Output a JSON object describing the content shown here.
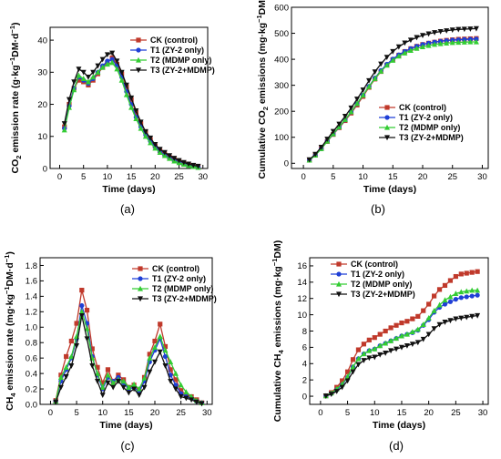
{
  "colors": {
    "CK": "#c0392b",
    "T1": "#1f3fd6",
    "T2": "#33cc33",
    "T3": "#111111"
  },
  "chart_data": [
    {
      "id": "a",
      "type": "line",
      "caption": "(a)",
      "xlabel": "Time (days)",
      "ylabel_parts": [
        "CO",
        "2",
        " emission rate (g·kg",
        "−1",
        "DM·d",
        "−1",
        ")"
      ],
      "xlim": [
        -2,
        31
      ],
      "ylim": [
        0,
        44
      ],
      "xticks": [
        "0",
        "5",
        "10",
        "15",
        "20",
        "25",
        "30"
      ],
      "yticks": [
        "0",
        "10",
        "20",
        "30",
        "40"
      ],
      "legend_position": "top-right",
      "legend": [
        "CK (control)",
        "T1  (ZY-2 only)",
        "T2  (MDMP only)",
        "T3  (ZY-2+MDMP)"
      ],
      "x": [
        1,
        2,
        3,
        4,
        5,
        6,
        7,
        8,
        9,
        10,
        11,
        12,
        13,
        14,
        15,
        16,
        17,
        18,
        19,
        20,
        21,
        22,
        23,
        24,
        25,
        26,
        27,
        28,
        29
      ],
      "series": [
        {
          "key": "CK",
          "marker": "square",
          "values": [
            13,
            20,
            25,
            27.5,
            27,
            26,
            27.5,
            29.5,
            31.5,
            33,
            34.5,
            32.5,
            29.5,
            25.5,
            21.5,
            17.5,
            14,
            11.5,
            9,
            7,
            5.5,
            4.5,
            3.5,
            2.8,
            2.2,
            1.6,
            1.2,
            0.9,
            0.6
          ]
        },
        {
          "key": "T1",
          "marker": "circle",
          "values": [
            12.5,
            19.5,
            25,
            28.5,
            27.5,
            26.5,
            28,
            30,
            32,
            33.5,
            34,
            32,
            28.5,
            24,
            20,
            16,
            13,
            10.5,
            8.5,
            6.8,
            5.3,
            4.2,
            3.3,
            2.5,
            1.9,
            1.4,
            1,
            0.7,
            0.4
          ]
        },
        {
          "key": "T2",
          "marker": "triangle-up",
          "values": [
            12,
            19,
            24.5,
            29,
            28,
            27,
            28.5,
            30,
            31.5,
            32.5,
            33,
            31,
            27.5,
            23,
            19,
            15.5,
            12.5,
            10,
            8,
            6.3,
            5,
            4,
            3.1,
            2.3,
            1.8,
            1.3,
            0.9,
            0.6,
            0.3
          ]
        },
        {
          "key": "T3",
          "marker": "triangle-down",
          "values": [
            14,
            21.5,
            27,
            31,
            30,
            28.5,
            30,
            32,
            34,
            35.5,
            36,
            33.5,
            30,
            26,
            22,
            18,
            14.5,
            11.5,
            9.5,
            7.5,
            6,
            5,
            4,
            3.2,
            2.5,
            1.9,
            1.4,
            1,
            0.7
          ]
        }
      ]
    },
    {
      "id": "b",
      "type": "line",
      "caption": "(b)",
      "xlabel": "Time (days)",
      "ylabel_parts": [
        "Cumulative CO",
        "2",
        " emissions (mg·kg",
        "−1",
        "DM)"
      ],
      "xlim": [
        -2,
        31
      ],
      "ylim": [
        -20,
        600
      ],
      "xticks": [
        "0",
        "5",
        "10",
        "15",
        "20",
        "25",
        "30"
      ],
      "yticks": [
        "0",
        "100",
        "200",
        "300",
        "400",
        "500",
        "600"
      ],
      "legend_position": "bottom-right",
      "legend": [
        "CK (control)",
        "T1  (ZY-2 only)",
        "T2  (MDMP only)",
        "T3  (ZY-2+MDMP)"
      ],
      "x": [
        1,
        2,
        3,
        4,
        5,
        6,
        7,
        8,
        9,
        10,
        11,
        12,
        13,
        14,
        15,
        16,
        17,
        18,
        19,
        20,
        21,
        22,
        23,
        24,
        25,
        26,
        27,
        28,
        29
      ],
      "series": [
        {
          "key": "CK",
          "marker": "square",
          "values": [
            13,
            32,
            57,
            84,
            111,
            137,
            164,
            193,
            224,
            257,
            292,
            324,
            353,
            378,
            399,
            416,
            430,
            441,
            450,
            457,
            462,
            466,
            470,
            473,
            475,
            477,
            478,
            479,
            480
          ]
        },
        {
          "key": "T1",
          "marker": "circle",
          "values": [
            12,
            31,
            56,
            85,
            112,
            139,
            167,
            197,
            229,
            262,
            296,
            328,
            357,
            381,
            401,
            417,
            430,
            441,
            450,
            457,
            462,
            466,
            469,
            472,
            474,
            475,
            476,
            477,
            478
          ]
        },
        {
          "key": "T2",
          "marker": "triangle-up",
          "values": [
            12,
            31,
            56,
            85,
            113,
            140,
            168,
            198,
            230,
            262,
            295,
            326,
            354,
            377,
            396,
            412,
            424,
            434,
            442,
            448,
            453,
            457,
            460,
            462,
            464,
            465,
            466,
            467,
            467
          ]
        },
        {
          "key": "T3",
          "marker": "triangle-down",
          "values": [
            14,
            35,
            62,
            93,
            123,
            151,
            181,
            213,
            247,
            282,
            318,
            352,
            382,
            408,
            430,
            448,
            463,
            474,
            484,
            492,
            498,
            503,
            507,
            510,
            513,
            515,
            516,
            517,
            518
          ]
        }
      ]
    },
    {
      "id": "c",
      "type": "line",
      "caption": "(c)",
      "xlabel": "Time (days)",
      "ylabel_parts": [
        "CH",
        "4",
        " emission rate (mg·kg",
        "−1",
        "DM·d",
        "−1",
        ")"
      ],
      "xlim": [
        -2,
        31
      ],
      "ylim": [
        0,
        1.9
      ],
      "xticks": [
        "0",
        "5",
        "10",
        "15",
        "20",
        "25",
        "30"
      ],
      "yticks": [
        "0.0",
        "0.2",
        "0.4",
        "0.6",
        "0.8",
        "1.0",
        "1.2",
        "1.4",
        "1.6",
        "1.8"
      ],
      "legend_position": "top-right",
      "legend": [
        "CK (control)",
        "T1  (ZY-2 only)",
        "T2  (MDMP only)",
        "T3  (ZY-2+MDMP)"
      ],
      "x": [
        1,
        2,
        3,
        4,
        5,
        6,
        7,
        8,
        9,
        10,
        11,
        12,
        13,
        14,
        15,
        16,
        17,
        18,
        19,
        20,
        21,
        22,
        23,
        24,
        25,
        26,
        27,
        28,
        29
      ],
      "series": [
        {
          "key": "CK",
          "marker": "square",
          "values": [
            0.05,
            0.38,
            0.62,
            0.82,
            1.05,
            1.48,
            1.22,
            0.72,
            0.48,
            0.28,
            0.45,
            0.3,
            0.38,
            0.32,
            0.22,
            0.25,
            0.18,
            0.35,
            0.65,
            0.82,
            1.04,
            0.75,
            0.45,
            0.32,
            0.18,
            0.12,
            0.1,
            0.06,
            0.02
          ]
        },
        {
          "key": "T1",
          "marker": "circle",
          "values": [
            0.04,
            0.3,
            0.45,
            0.6,
            0.85,
            1.28,
            1.05,
            0.62,
            0.38,
            0.2,
            0.35,
            0.3,
            0.35,
            0.28,
            0.2,
            0.22,
            0.16,
            0.3,
            0.55,
            0.7,
            0.85,
            0.62,
            0.38,
            0.25,
            0.14,
            0.1,
            0.08,
            0.04,
            0.02
          ]
        },
        {
          "key": "T2",
          "marker": "triangle-up",
          "values": [
            0.04,
            0.35,
            0.48,
            0.62,
            0.88,
            1.2,
            0.98,
            0.6,
            0.4,
            0.22,
            0.38,
            0.28,
            0.32,
            0.3,
            0.22,
            0.26,
            0.2,
            0.34,
            0.6,
            0.74,
            0.88,
            0.7,
            0.55,
            0.4,
            0.25,
            0.16,
            0.1,
            0.05,
            0.02
          ]
        },
        {
          "key": "T3",
          "marker": "triangle-down",
          "values": [
            0.03,
            0.22,
            0.36,
            0.5,
            0.76,
            1.15,
            0.85,
            0.5,
            0.3,
            0.12,
            0.28,
            0.22,
            0.3,
            0.22,
            0.15,
            0.2,
            0.12,
            0.22,
            0.42,
            0.55,
            0.68,
            0.5,
            0.3,
            0.2,
            0.1,
            0.08,
            0.06,
            0.03,
            0.01
          ]
        }
      ]
    },
    {
      "id": "d",
      "type": "line",
      "caption": "(d)",
      "xlabel": "Time (days)",
      "ylabel_parts": [
        "Cumulative CH",
        "4",
        " emissions (mg·kg",
        "−1",
        "DM)"
      ],
      "xlim": [
        -2,
        31
      ],
      "ylim": [
        -1,
        17
      ],
      "xticks": [
        "0",
        "5",
        "10",
        "15",
        "20",
        "25",
        "30"
      ],
      "yticks": [
        "0",
        "2",
        "4",
        "6",
        "8",
        "10",
        "12",
        "14",
        "16"
      ],
      "legend_position": "top-left",
      "legend": [
        "CK (control)",
        "T1  (ZY-2 only)",
        "T2  (MDMP only)",
        "T3  (ZY-2+MDMP)"
      ],
      "x": [
        1,
        2,
        3,
        4,
        5,
        6,
        7,
        8,
        9,
        10,
        11,
        12,
        13,
        14,
        15,
        16,
        17,
        18,
        19,
        20,
        21,
        22,
        23,
        24,
        25,
        26,
        27,
        28,
        29
      ],
      "series": [
        {
          "key": "CK",
          "marker": "square",
          "values": [
            0.05,
            0.45,
            1.1,
            1.9,
            3,
            4.5,
            5.7,
            6.4,
            6.9,
            7.2,
            7.6,
            8,
            8.4,
            8.7,
            9,
            9.2,
            9.5,
            9.8,
            10.5,
            11.3,
            12.3,
            13.1,
            13.6,
            14.2,
            14.7,
            15,
            15.1,
            15.2,
            15.3
          ]
        },
        {
          "key": "T1",
          "marker": "circle",
          "values": [
            0.04,
            0.35,
            0.8,
            1.4,
            2.3,
            3.6,
            4.6,
            5.2,
            5.6,
            5.8,
            6.2,
            6.5,
            6.8,
            7.1,
            7.4,
            7.6,
            7.8,
            8.1,
            8.7,
            9.4,
            10.3,
            10.9,
            11.3,
            11.6,
            11.9,
            12.1,
            12.2,
            12.3,
            12.4
          ]
        },
        {
          "key": "T2",
          "marker": "triangle-up",
          "values": [
            0.04,
            0.4,
            0.9,
            1.5,
            2.4,
            3.6,
            4.6,
            5.2,
            5.6,
            5.8,
            6.2,
            6.5,
            6.8,
            7.1,
            7.4,
            7.6,
            7.9,
            8.2,
            8.8,
            9.6,
            10.5,
            11.2,
            11.8,
            12.2,
            12.6,
            12.8,
            12.9,
            13,
            13
          ]
        },
        {
          "key": "T3",
          "marker": "triangle-down",
          "values": [
            0.03,
            0.25,
            0.6,
            1.1,
            1.9,
            3,
            3.9,
            4.4,
            4.7,
            4.8,
            5.1,
            5.3,
            5.6,
            5.8,
            6,
            6.2,
            6.4,
            6.6,
            7,
            7.6,
            8.3,
            8.8,
            9.1,
            9.3,
            9.5,
            9.6,
            9.7,
            9.8,
            9.9
          ]
        }
      ]
    }
  ]
}
